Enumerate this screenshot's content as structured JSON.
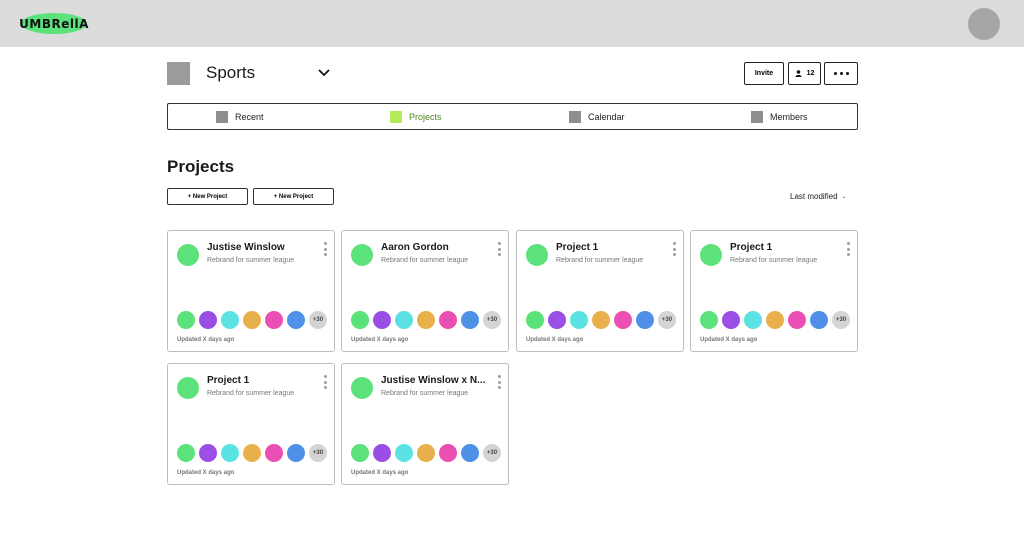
{
  "header": {
    "logo_text": "UMBRellA",
    "logo_color": "#5be27a"
  },
  "workspace": {
    "title": "Sports",
    "invite_label": "Invite",
    "member_count": "12"
  },
  "tabs": [
    {
      "label": "Recent",
      "active": false
    },
    {
      "label": "Projects",
      "active": true
    },
    {
      "label": "Calendar",
      "active": false
    },
    {
      "label": "Members",
      "active": false
    }
  ],
  "section": {
    "title": "Projects",
    "new_buttons": [
      "+ New Project",
      "+ New Project"
    ],
    "sort_label": "Last modified"
  },
  "member_colors": [
    "#5be27a",
    "#9b4ee6",
    "#5be3e3",
    "#e8b04a",
    "#ea4fb3",
    "#4f91e8"
  ],
  "projects": [
    {
      "title": "Justise Winslow",
      "subtitle": "Rebrand for summer league",
      "more": "+30",
      "updated": "Updated X days ago"
    },
    {
      "title": "Aaron Gordon",
      "subtitle": "Rebrand for summer league",
      "more": "+30",
      "updated": "Updated X days ago"
    },
    {
      "title": "Project 1",
      "subtitle": "Rebrand for summer league",
      "more": "+30",
      "updated": "Updated X days ago"
    },
    {
      "title": "Project 1",
      "subtitle": "Rebrand for summer league",
      "more": "+30",
      "updated": "Updated X days ago"
    },
    {
      "title": "Project 1",
      "subtitle": "Rebrand for summer league",
      "more": "+30",
      "updated": "Updated X days ago"
    },
    {
      "title": "Justise Winslow x N...",
      "subtitle": "Rebrand for summer league",
      "more": "+30",
      "updated": "Updated X days ago"
    }
  ]
}
